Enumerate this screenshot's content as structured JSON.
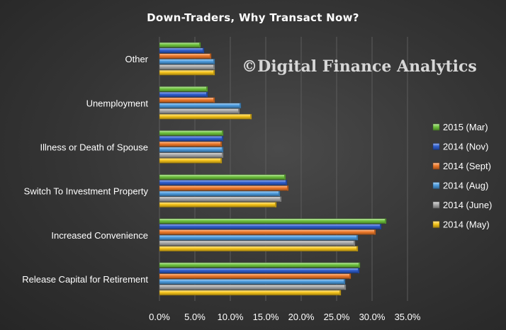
{
  "chart_data": {
    "type": "bar",
    "orientation": "horizontal",
    "title": "Down-Traders,  Why Transact  Now?",
    "watermark": "©Digital Finance Analytics",
    "categories": [
      "Other",
      "Unemployment",
      "Illness or Death of Spouse",
      "Switch To Investment Property",
      "Increased Convenience",
      "Release Capital for Retirement"
    ],
    "series": [
      {
        "name": "2015 (Mar)",
        "color": "#6fc43e",
        "values": [
          5.8,
          6.8,
          9.0,
          17.8,
          32.0,
          28.3
        ]
      },
      {
        "name": "2014 (Nov)",
        "color": "#2f5fd0",
        "values": [
          6.3,
          6.8,
          9.0,
          18.0,
          31.3,
          28.2
        ]
      },
      {
        "name": "2014 (Sept)",
        "color": "#f07a2a",
        "values": [
          7.3,
          7.8,
          8.8,
          18.2,
          30.5,
          27.0
        ]
      },
      {
        "name": "2014 (Aug)",
        "color": "#4d9de0",
        "values": [
          7.8,
          11.5,
          9.0,
          17.0,
          28.0,
          26.2
        ]
      },
      {
        "name": "2014 (June)",
        "color": "#a8a8a8",
        "values": [
          7.8,
          11.3,
          9.0,
          17.2,
          27.6,
          26.3
        ]
      },
      {
        "name": "2014 (May)",
        "color": "#f7c51a",
        "values": [
          7.8,
          13.0,
          8.8,
          16.5,
          28.0,
          25.6
        ]
      }
    ],
    "xlim": [
      0,
      35
    ],
    "xticks": [
      "0.0%",
      "5.0%",
      "10.0%",
      "15.0%",
      "20.0%",
      "25.0%",
      "30.0%",
      "35.0%"
    ],
    "grid": "vertical",
    "legend": "right"
  }
}
